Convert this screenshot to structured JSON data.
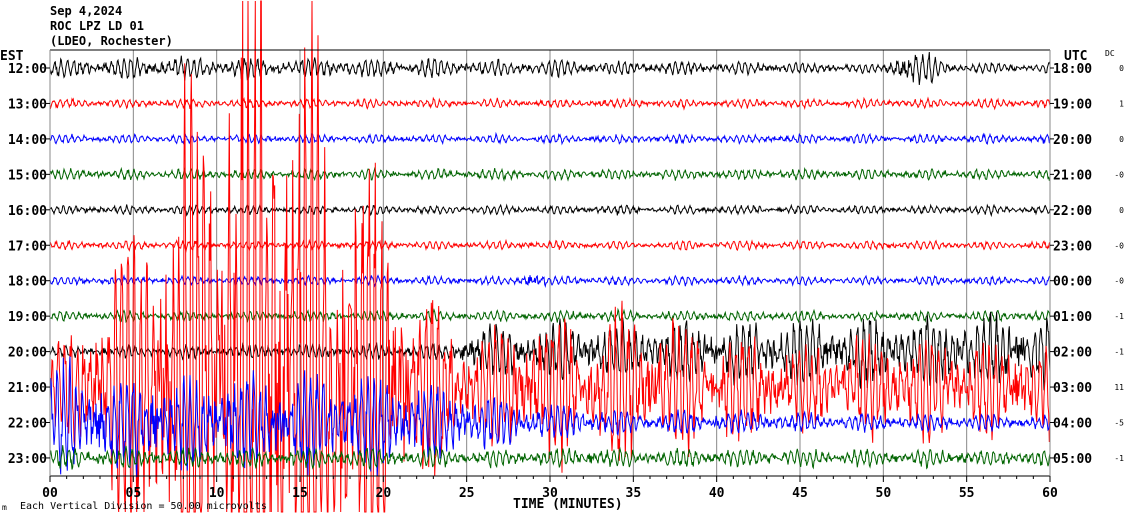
{
  "header": {
    "date": "Sep 4,2024",
    "station": "ROC LPZ LD 01",
    "network": "(LDEO, Rochester)"
  },
  "left_axis_title": "EST",
  "right_axis_title": "UTC",
  "dc_title": "DC",
  "footer": {
    "scale_note": "Each Vertical Division =   50.00 microvolts",
    "corner_mark": "m"
  },
  "chart_data": {
    "type": "line",
    "title": "Sep 4,2024 ROC LPZ LD 01 (LDEO, Rochester)",
    "xlabel": "TIME (MINUTES)",
    "xlim": [
      0,
      60
    ],
    "xticks": [
      "00",
      "05",
      "10",
      "15",
      "20",
      "25",
      "30",
      "35",
      "40",
      "45",
      "50",
      "55",
      "60"
    ],
    "grid": true,
    "microvolts_per_division": 50,
    "series": [
      {
        "est": "12:00",
        "utc": "18:00",
        "dc": "0",
        "color": "#000000",
        "noise": 4,
        "envelope": [
          [
            0,
            10
          ],
          [
            3,
            14
          ],
          [
            50,
            6
          ],
          [
            51,
            22
          ],
          [
            53,
            18
          ],
          [
            54,
            6
          ],
          [
            60,
            6
          ]
        ]
      },
      {
        "est": "13:00",
        "utc": "19:00",
        "dc": "1",
        "color": "#ff0000",
        "noise": 4,
        "envelope": [
          [
            0,
            5
          ],
          [
            60,
            5
          ]
        ]
      },
      {
        "est": "14:00",
        "utc": "20:00",
        "dc": "0",
        "color": "#0000ff",
        "noise": 4,
        "envelope": [
          [
            0,
            5
          ],
          [
            60,
            5
          ]
        ]
      },
      {
        "est": "15:00",
        "utc": "21:00",
        "dc": "-0",
        "color": "#006400",
        "noise": 5,
        "envelope": [
          [
            0,
            6
          ],
          [
            60,
            6
          ]
        ]
      },
      {
        "est": "16:00",
        "utc": "22:00",
        "dc": "0",
        "color": "#000000",
        "noise": 4,
        "envelope": [
          [
            0,
            5
          ],
          [
            60,
            5
          ]
        ]
      },
      {
        "est": "17:00",
        "utc": "23:00",
        "dc": "-0",
        "color": "#ff0000",
        "noise": 4,
        "envelope": [
          [
            0,
            5
          ],
          [
            60,
            5
          ]
        ]
      },
      {
        "est": "18:00",
        "utc": "00:00",
        "dc": "-0",
        "color": "#0000ff",
        "noise": 4,
        "envelope": [
          [
            0,
            5
          ],
          [
            28,
            5
          ],
          [
            29,
            14
          ],
          [
            30,
            5
          ],
          [
            60,
            5
          ]
        ]
      },
      {
        "est": "19:00",
        "utc": "01:00",
        "dc": "-1",
        "color": "#006400",
        "noise": 5,
        "envelope": [
          [
            0,
            6
          ],
          [
            60,
            6
          ]
        ]
      },
      {
        "est": "20:00",
        "utc": "02:00",
        "dc": "-1",
        "color": "#000000",
        "noise": 5,
        "envelope": [
          [
            0,
            6
          ],
          [
            24,
            10
          ],
          [
            25,
            30
          ],
          [
            30,
            35
          ],
          [
            45,
            40
          ],
          [
            60,
            45
          ]
        ]
      },
      {
        "est": "21:00",
        "utc": "03:00",
        "dc": "11",
        "color": "#ff0000",
        "noise": 6,
        "envelope": [
          [
            0,
            40
          ],
          [
            3,
            120
          ],
          [
            6,
            250
          ],
          [
            9,
            400
          ],
          [
            12,
            560
          ],
          [
            14,
            560
          ],
          [
            17,
            380
          ],
          [
            20,
            260
          ],
          [
            22,
            140
          ],
          [
            24,
            90
          ],
          [
            25,
            70
          ],
          [
            30,
            90
          ],
          [
            35,
            90
          ],
          [
            40,
            80
          ],
          [
            45,
            50
          ],
          [
            50,
            70
          ],
          [
            55,
            60
          ],
          [
            60,
            60
          ]
        ]
      },
      {
        "est": "22:00",
        "utc": "04:00",
        "dc": "-5",
        "color": "#0000ff",
        "noise": 6,
        "envelope": [
          [
            0,
            70
          ],
          [
            10,
            60
          ],
          [
            20,
            60
          ],
          [
            25,
            40
          ],
          [
            30,
            20
          ],
          [
            35,
            15
          ],
          [
            45,
            12
          ],
          [
            60,
            10
          ]
        ]
      },
      {
        "est": "23:00",
        "utc": "05:00",
        "dc": "-1",
        "color": "#006400",
        "noise": 6,
        "envelope": [
          [
            0,
            12
          ],
          [
            60,
            10
          ]
        ]
      }
    ]
  }
}
